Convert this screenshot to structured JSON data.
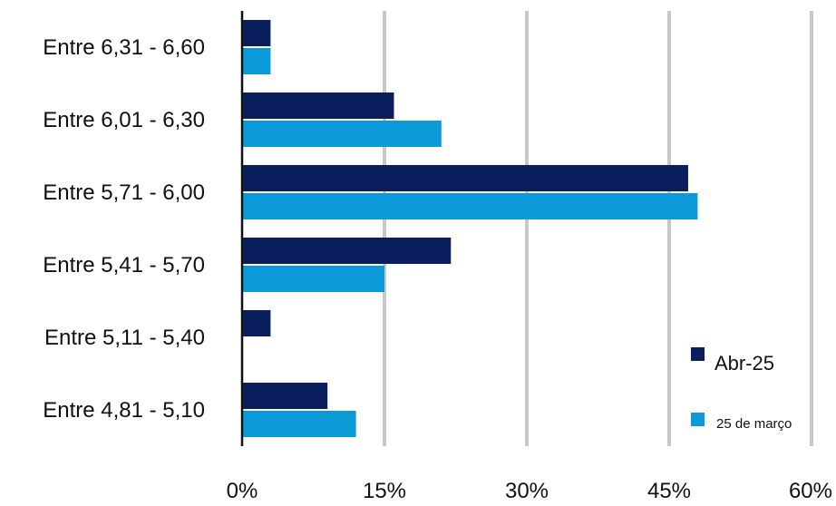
{
  "chart_data": {
    "type": "bar",
    "orientation": "horizontal",
    "categories": [
      "Entre 6,31 - 6,60",
      "Entre 6,01 - 6,30",
      "Entre 5,71 - 6,00",
      "Entre 5,41 - 5,70",
      "Entre 5,11 - 5,40",
      "Entre 4,81 - 5,10"
    ],
    "series": [
      {
        "name": "Abr-25",
        "color": "#0b1f5c",
        "values": [
          3,
          16,
          47,
          22,
          3,
          9
        ]
      },
      {
        "name": "25 de março",
        "color": "#0b9ad7",
        "values": [
          3,
          21,
          48,
          15,
          0,
          12
        ]
      }
    ],
    "xlim": [
      0,
      60
    ],
    "xticks": [
      "0%",
      "15%",
      "30%",
      "45%",
      "60%"
    ],
    "xtick_values": [
      0,
      15,
      30,
      45,
      60
    ],
    "grid": "vertical",
    "legend_position": "bottom-right"
  }
}
